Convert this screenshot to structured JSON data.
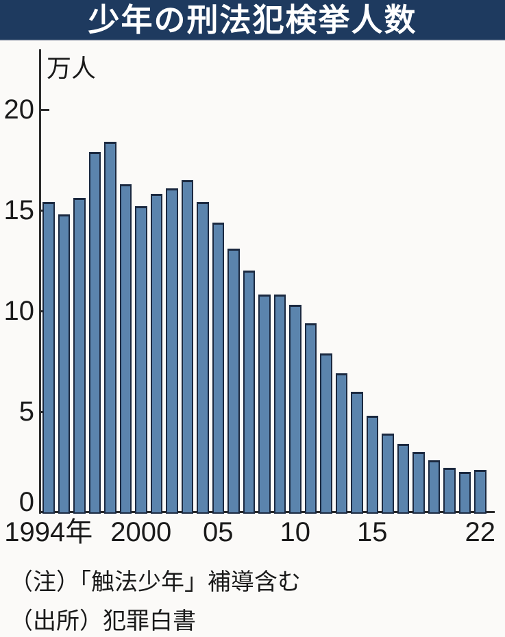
{
  "header": {
    "title": "少年の刑法犯検挙人数"
  },
  "chart_data": {
    "type": "bar",
    "title": "少年の刑法犯検挙人数",
    "unit_label": "万人",
    "ylabel": "万人",
    "xlabel": "",
    "ylim": [
      0,
      22
    ],
    "yticks": [
      0,
      5,
      10,
      15,
      20
    ],
    "grid": false,
    "legend": false,
    "x": [
      1994,
      1995,
      1996,
      1997,
      1998,
      1999,
      2000,
      2001,
      2002,
      2003,
      2004,
      2005,
      2006,
      2007,
      2008,
      2009,
      2010,
      2011,
      2012,
      2013,
      2014,
      2015,
      2016,
      2017,
      2018,
      2019,
      2020,
      2021,
      2022
    ],
    "values": [
      15.4,
      14.8,
      15.6,
      17.9,
      18.4,
      16.3,
      15.2,
      15.8,
      16.1,
      16.5,
      15.4,
      14.4,
      13.1,
      12.0,
      10.8,
      10.8,
      10.3,
      9.4,
      7.9,
      6.9,
      6.0,
      4.8,
      3.9,
      3.4,
      3.0,
      2.6,
      2.2,
      2.0,
      2.1
    ],
    "xtick_labels": [
      {
        "label": "1994年",
        "year": 1994
      },
      {
        "label": "2000",
        "year": 2000
      },
      {
        "label": "05",
        "year": 2005
      },
      {
        "label": "10",
        "year": 2010
      },
      {
        "label": "15",
        "year": 2015
      },
      {
        "label": "22",
        "year": 2022
      }
    ],
    "bar_color": "#5b84ad",
    "bar_border_color": "#1b2940",
    "axis_color": "#2b2b2b"
  },
  "notes": {
    "note": "（注）「触法少年」補導含む",
    "source": "（出所）犯罪白書"
  },
  "colors": {
    "header_bg": "#1e3a5f",
    "header_text": "#ffffff",
    "background": "#fbfaf8",
    "text": "#1a1a1a"
  }
}
